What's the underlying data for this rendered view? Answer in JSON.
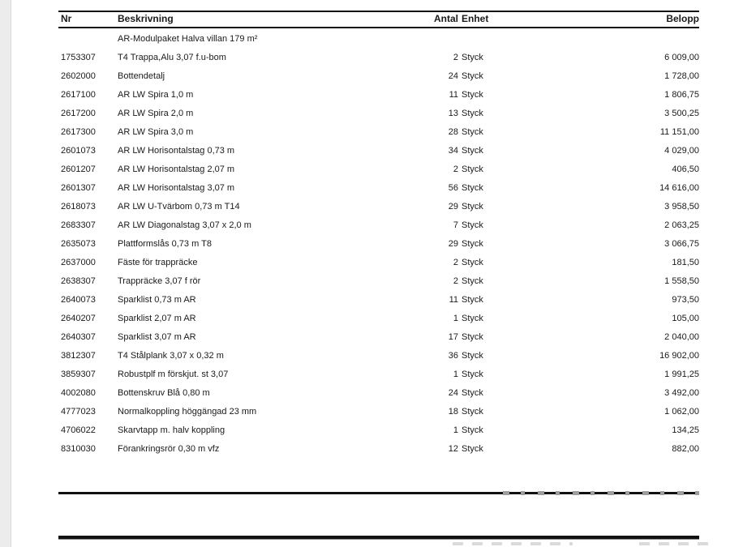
{
  "document": {
    "type_note": "price list / quotation table (Swedish)",
    "colors": {
      "text": "#1a1a1a",
      "rule": "#111111",
      "page_bg": "#ffffff",
      "gutter_bg": "#ececec",
      "watermark_gray": "#9d9d9d"
    }
  },
  "table": {
    "headers": {
      "nr": "Nr",
      "beskrivning": "Beskrivning",
      "antal": "Antal",
      "enhet": "Enhet",
      "belopp": "Belopp"
    },
    "unit_word": "Styck",
    "rows": [
      {
        "nr": "",
        "desc": "AR-Modulpaket Halva villan 179 m²",
        "qty": "",
        "unit": "",
        "amount": ""
      },
      {
        "nr": "1753307",
        "desc": "T4 Trappa,Alu 3,07 f.u-bom",
        "qty": "2",
        "unit": "Styck",
        "amount": "6 009,00"
      },
      {
        "nr": "2602000",
        "desc": "Bottendetalj",
        "qty": "24",
        "unit": "Styck",
        "amount": "1 728,00"
      },
      {
        "nr": "2617100",
        "desc": "AR LW Spira 1,0 m",
        "qty": "11",
        "unit": "Styck",
        "amount": "1 806,75"
      },
      {
        "nr": "2617200",
        "desc": "AR LW Spira 2,0 m",
        "qty": "13",
        "unit": "Styck",
        "amount": "3 500,25"
      },
      {
        "nr": "2617300",
        "desc": "AR LW Spira 3,0 m",
        "qty": "28",
        "unit": "Styck",
        "amount": "11 151,00"
      },
      {
        "nr": "2601073",
        "desc": "AR LW Horisontalstag 0,73 m",
        "qty": "34",
        "unit": "Styck",
        "amount": "4 029,00"
      },
      {
        "nr": "2601207",
        "desc": "AR LW Horisontalstag 2,07 m",
        "qty": "2",
        "unit": "Styck",
        "amount": "406,50"
      },
      {
        "nr": "2601307",
        "desc": "AR LW Horisontalstag 3,07 m",
        "qty": "56",
        "unit": "Styck",
        "amount": "14 616,00"
      },
      {
        "nr": "2618073",
        "desc": "AR LW U-Tvärbom 0,73 m T14",
        "qty": "29",
        "unit": "Styck",
        "amount": "3 958,50"
      },
      {
        "nr": "2683307",
        "desc": "AR LW Diagonalstag 3,07 x 2,0 m",
        "qty": "7",
        "unit": "Styck",
        "amount": "2 063,25"
      },
      {
        "nr": "2635073",
        "desc": "Plattformslås 0,73 m T8",
        "qty": "29",
        "unit": "Styck",
        "amount": "3 066,75"
      },
      {
        "nr": "2637000",
        "desc": "Fäste för trappräcke",
        "qty": "2",
        "unit": "Styck",
        "amount": "181,50"
      },
      {
        "nr": "2638307",
        "desc": "Trappräcke 3,07 f rör",
        "qty": "2",
        "unit": "Styck",
        "amount": "1 558,50"
      },
      {
        "nr": "2640073",
        "desc": "Sparklist 0,73 m AR",
        "qty": "11",
        "unit": "Styck",
        "amount": "973,50"
      },
      {
        "nr": "2640207",
        "desc": "Sparklist 2,07 m AR",
        "qty": "1",
        "unit": "Styck",
        "amount": "105,00"
      },
      {
        "nr": "2640307",
        "desc": "Sparklist 3,07 m AR",
        "qty": "17",
        "unit": "Styck",
        "amount": "2 040,00"
      },
      {
        "nr": "3812307",
        "desc": "T4 Stålplank 3,07 x 0,32 m",
        "qty": "36",
        "unit": "Styck",
        "amount": "16 902,00"
      },
      {
        "nr": "3859307",
        "desc": "Robustplf m förskjut. st 3,07",
        "qty": "1",
        "unit": "Styck",
        "amount": "1 991,25"
      },
      {
        "nr": "4002080",
        "desc": "Bottenskruv Blå 0,80 m",
        "qty": "24",
        "unit": "Styck",
        "amount": "3 492,00"
      },
      {
        "nr": "4777023",
        "desc": "Normalkoppling höggängad 23 mm",
        "qty": "18",
        "unit": "Styck",
        "amount": "1 062,00"
      },
      {
        "nr": "4706022",
        "desc": "Skarvtapp m. halv koppling",
        "qty": "1",
        "unit": "Styck",
        "amount": "134,25"
      },
      {
        "nr": "8310030",
        "desc": "Förankringsrör 0,30 m vfz",
        "qty": "12",
        "unit": "Styck",
        "amount": "882,00"
      }
    ]
  }
}
